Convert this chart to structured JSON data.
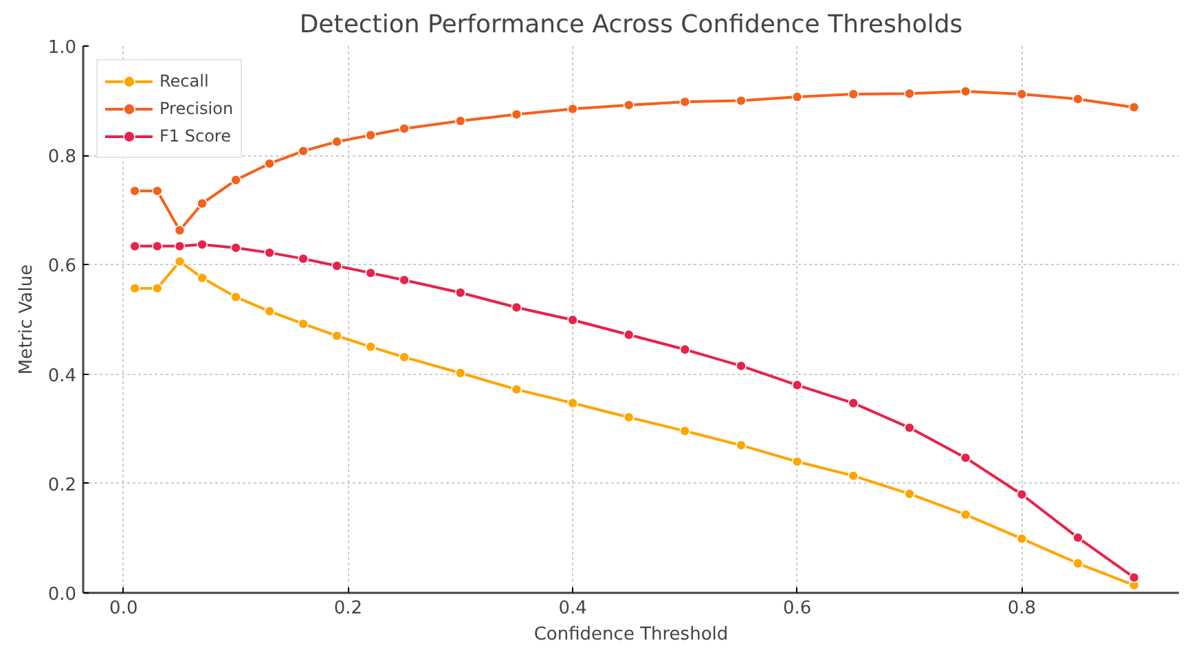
{
  "chart_data": {
    "type": "line",
    "title": "Detection Performance Across Confidence Thresholds",
    "xlabel": "Confidence Threshold",
    "ylabel": "Metric Value",
    "x": [
      0.01,
      0.03,
      0.05,
      0.07,
      0.1,
      0.13,
      0.16,
      0.19,
      0.22,
      0.25,
      0.3,
      0.35,
      0.4,
      0.45,
      0.5,
      0.55,
      0.6,
      0.65,
      0.7,
      0.75,
      0.8,
      0.85,
      0.9
    ],
    "series": [
      {
        "name": "Recall",
        "color": "#ffa500",
        "values": [
          0.557,
          0.557,
          0.606,
          0.576,
          0.541,
          0.515,
          0.492,
          0.47,
          0.45,
          0.431,
          0.402,
          0.372,
          0.347,
          0.321,
          0.296,
          0.27,
          0.24,
          0.214,
          0.181,
          0.143,
          0.099,
          0.054,
          0.014
        ]
      },
      {
        "name": "Precision",
        "color": "#f4611b",
        "values": [
          0.735,
          0.735,
          0.663,
          0.712,
          0.755,
          0.785,
          0.808,
          0.825,
          0.837,
          0.849,
          0.863,
          0.875,
          0.885,
          0.892,
          0.898,
          0.9,
          0.907,
          0.912,
          0.913,
          0.917,
          0.912,
          0.903,
          0.888
        ]
      },
      {
        "name": "F1 Score",
        "color": "#e8224a",
        "values": [
          0.634,
          0.634,
          0.634,
          0.637,
          0.631,
          0.622,
          0.611,
          0.598,
          0.585,
          0.572,
          0.549,
          0.522,
          0.499,
          0.472,
          0.445,
          0.415,
          0.38,
          0.347,
          0.302,
          0.247,
          0.18,
          0.101,
          0.028
        ]
      }
    ],
    "xlim": [
      -0.036,
      0.94
    ],
    "ylim": [
      0,
      1
    ],
    "xticks": [
      {
        "value": 0,
        "label": "0.0"
      },
      0.2,
      0.4,
      0.6,
      0.8
    ],
    "yticks": [
      {
        "value": 0,
        "label": "0.0"
      },
      0.2,
      0.4,
      0.6,
      0.8,
      {
        "value": 1,
        "label": "1.0"
      }
    ],
    "grid": true,
    "legend": "top left",
    "marker": "circle",
    "line_style": "solid"
  }
}
